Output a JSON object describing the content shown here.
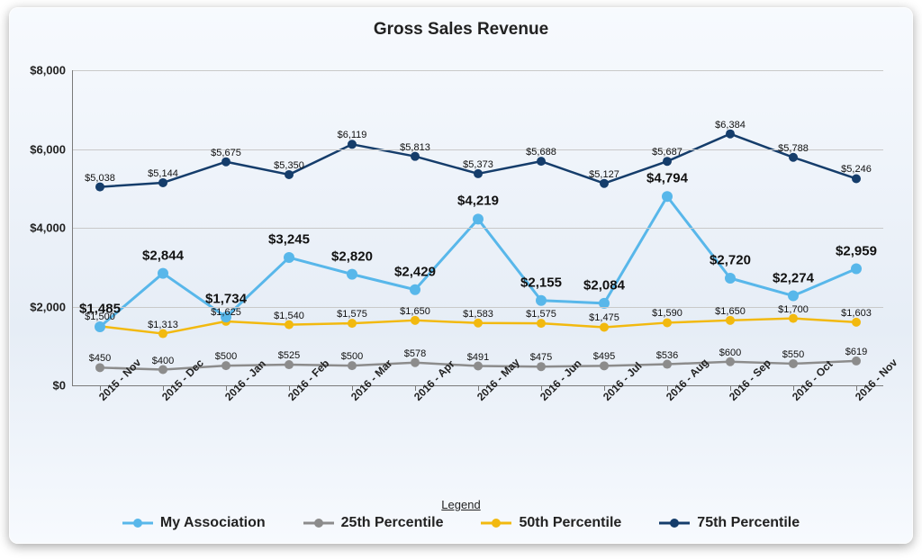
{
  "title": "Gross Sales Revenue",
  "chart": {
    "type": "line",
    "background_gradient": [
      "#f7fafe",
      "#e6edf6"
    ],
    "grid_color": "#c9c9c9",
    "axis_color": "#7a7a7a",
    "y": {
      "min": 0,
      "max": 8000,
      "ticks": [
        0,
        2000,
        4000,
        6000,
        8000
      ],
      "tick_labels": [
        "$0",
        "$2,000",
        "$4,000",
        "$6,000",
        "$8,000"
      ],
      "label_fontsize": 13
    },
    "x": {
      "categories": [
        "2015 - Nov",
        "2015 - Dec",
        "2016 - Jan",
        "2016 - Feb",
        "2016 - Mar",
        "2016 - Apr",
        "2016 - May",
        "2016 - Jun",
        "2016 - Jul",
        "2016 - Aug",
        "2016 - Sep",
        "2016 - Oct",
        "2016 - Nov"
      ],
      "label_fontsize": 12,
      "label_rotation_deg": -45
    },
    "series": [
      {
        "id": "my_association",
        "name": "My Association",
        "color": "#58b7ea",
        "line_width": 3,
        "marker_radius": 6,
        "big_label": true,
        "values": [
          1485,
          2844,
          1734,
          3245,
          2820,
          2429,
          4219,
          2155,
          2084,
          4794,
          2720,
          2274,
          2959
        ],
        "value_labels": [
          "$1,485",
          "$2,844",
          "$1,734",
          "$3,245",
          "$2,820",
          "$2,429",
          "$4,219",
          "$2,155",
          "$2,084",
          "$4,794",
          "$2,720",
          "$2,274",
          "$2,959"
        ]
      },
      {
        "id": "p25",
        "name": "25th Percentile",
        "color": "#8c8c8c",
        "line_width": 2.5,
        "marker_radius": 5,
        "big_label": false,
        "values": [
          450,
          400,
          500,
          525,
          500,
          578,
          491,
          475,
          495,
          536,
          600,
          550,
          619
        ],
        "value_labels": [
          "$450",
          "$400",
          "$500",
          "$525",
          "$500",
          "$578",
          "$491",
          "$475",
          "$495",
          "$536",
          "$600",
          "$550",
          "$619"
        ]
      },
      {
        "id": "p50",
        "name": "50th Percentile",
        "color": "#f2b90f",
        "line_width": 2.5,
        "marker_radius": 5,
        "big_label": false,
        "values": [
          1500,
          1313,
          1625,
          1540,
          1575,
          1650,
          1583,
          1575,
          1475,
          1590,
          1650,
          1700,
          1603
        ],
        "value_labels": [
          "$1,500",
          "$1,313",
          "$1,625",
          "$1,540",
          "$1,575",
          "$1,650",
          "$1,583",
          "$1,575",
          "$1,475",
          "$1,590",
          "$1,650",
          "$1,700",
          "$1,603"
        ]
      },
      {
        "id": "p75",
        "name": "75th Percentile",
        "color": "#153d6b",
        "line_width": 2.5,
        "marker_radius": 5,
        "big_label": false,
        "values": [
          5038,
          5144,
          5675,
          5350,
          6119,
          5813,
          5373,
          5688,
          5127,
          5687,
          6384,
          5788,
          5246
        ],
        "value_labels": [
          "$5,038",
          "$5,144",
          "$5,675",
          "$5,350",
          "$6,119",
          "$5,813",
          "$5,373",
          "$5,688",
          "$5,127",
          "$5,687",
          "$6,384",
          "$5,788",
          "$5,246"
        ]
      }
    ]
  },
  "legend": {
    "title": "Legend",
    "items": [
      {
        "label": "My Association",
        "color": "#58b7ea"
      },
      {
        "label": "25th Percentile",
        "color": "#8c8c8c"
      },
      {
        "label": "50th Percentile",
        "color": "#f2b90f"
      },
      {
        "label": "75th Percentile",
        "color": "#153d6b"
      }
    ]
  }
}
